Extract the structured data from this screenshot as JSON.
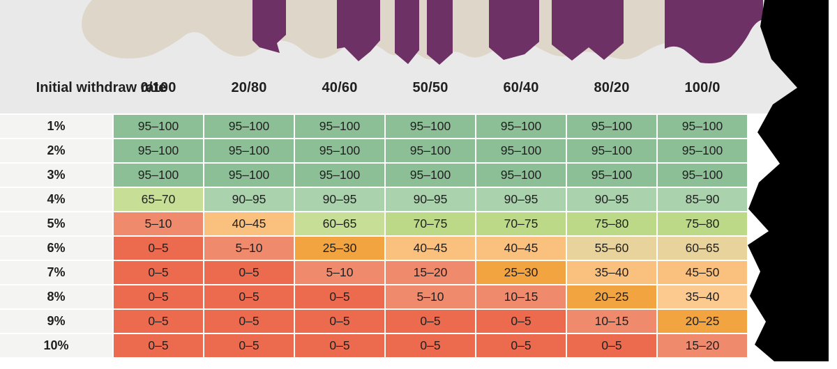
{
  "page": {
    "background": "#ffffff"
  },
  "decoration": {
    "band_color": "#e9e9ea",
    "beige": "#ddd6c9",
    "purple": "#6e3166",
    "torn_color": "#000000"
  },
  "palette": {
    "green": "#8dbf97",
    "lightgreen": "#a9d2ad",
    "lime": "#bcd987",
    "yellowgreen": "#c6de96",
    "tan": "#e9d39c",
    "peach": "#fac07e",
    "lightpeach": "#fcca8e",
    "orange": "#f2a440",
    "salmon": "#f08a6c",
    "red": "#ec6a4d",
    "label_bg": "#f4f4f3",
    "text": "#1f1f1f"
  },
  "table": {
    "corner_header": "Initial withdraw rate",
    "columns": [
      "0/100",
      "20/80",
      "40/60",
      "50/50",
      "60/40",
      "80/20",
      "100/0"
    ],
    "rows": [
      {
        "label": "1%",
        "cells": [
          {
            "v": "95–100",
            "c": "green"
          },
          {
            "v": "95–100",
            "c": "green"
          },
          {
            "v": "95–100",
            "c": "green"
          },
          {
            "v": "95–100",
            "c": "green"
          },
          {
            "v": "95–100",
            "c": "green"
          },
          {
            "v": "95–100",
            "c": "green"
          },
          {
            "v": "95–100",
            "c": "green"
          }
        ]
      },
      {
        "label": "2%",
        "cells": [
          {
            "v": "95–100",
            "c": "green"
          },
          {
            "v": "95–100",
            "c": "green"
          },
          {
            "v": "95–100",
            "c": "green"
          },
          {
            "v": "95–100",
            "c": "green"
          },
          {
            "v": "95–100",
            "c": "green"
          },
          {
            "v": "95–100",
            "c": "green"
          },
          {
            "v": "95–100",
            "c": "green"
          }
        ]
      },
      {
        "label": "3%",
        "cells": [
          {
            "v": "95–100",
            "c": "green"
          },
          {
            "v": "95–100",
            "c": "green"
          },
          {
            "v": "95–100",
            "c": "green"
          },
          {
            "v": "95–100",
            "c": "green"
          },
          {
            "v": "95–100",
            "c": "green"
          },
          {
            "v": "95–100",
            "c": "green"
          },
          {
            "v": "95–100",
            "c": "green"
          }
        ]
      },
      {
        "label": "4%",
        "cells": [
          {
            "v": "65–70",
            "c": "yellowgreen"
          },
          {
            "v": "90–95",
            "c": "lightgreen"
          },
          {
            "v": "90–95",
            "c": "lightgreen"
          },
          {
            "v": "90–95",
            "c": "lightgreen"
          },
          {
            "v": "90–95",
            "c": "lightgreen"
          },
          {
            "v": "90–95",
            "c": "lightgreen"
          },
          {
            "v": "85–90",
            "c": "lightgreen"
          }
        ]
      },
      {
        "label": "5%",
        "cells": [
          {
            "v": "5–10",
            "c": "salmon"
          },
          {
            "v": "40–45",
            "c": "peach"
          },
          {
            "v": "60–65",
            "c": "yellowgreen"
          },
          {
            "v": "70–75",
            "c": "lime"
          },
          {
            "v": "70–75",
            "c": "lime"
          },
          {
            "v": "75–80",
            "c": "lime"
          },
          {
            "v": "75–80",
            "c": "lime"
          }
        ]
      },
      {
        "label": "6%",
        "cells": [
          {
            "v": "0–5",
            "c": "red"
          },
          {
            "v": "5–10",
            "c": "salmon"
          },
          {
            "v": "25–30",
            "c": "orange"
          },
          {
            "v": "40–45",
            "c": "peach"
          },
          {
            "v": "40–45",
            "c": "peach"
          },
          {
            "v": "55–60",
            "c": "tan"
          },
          {
            "v": "60–65",
            "c": "tan"
          }
        ]
      },
      {
        "label": "7%",
        "cells": [
          {
            "v": "0–5",
            "c": "red"
          },
          {
            "v": "0–5",
            "c": "red"
          },
          {
            "v": "5–10",
            "c": "salmon"
          },
          {
            "v": "15–20",
            "c": "salmon"
          },
          {
            "v": "25–30",
            "c": "orange"
          },
          {
            "v": "35–40",
            "c": "peach"
          },
          {
            "v": "45–50",
            "c": "peach"
          }
        ]
      },
      {
        "label": "8%",
        "cells": [
          {
            "v": "0–5",
            "c": "red"
          },
          {
            "v": "0–5",
            "c": "red"
          },
          {
            "v": "0–5",
            "c": "red"
          },
          {
            "v": "5–10",
            "c": "salmon"
          },
          {
            "v": "10–15",
            "c": "salmon"
          },
          {
            "v": "20–25",
            "c": "orange"
          },
          {
            "v": "35–40",
            "c": "lightpeach"
          }
        ]
      },
      {
        "label": "9%",
        "cells": [
          {
            "v": "0–5",
            "c": "red"
          },
          {
            "v": "0–5",
            "c": "red"
          },
          {
            "v": "0–5",
            "c": "red"
          },
          {
            "v": "0–5",
            "c": "red"
          },
          {
            "v": "0–5",
            "c": "red"
          },
          {
            "v": "10–15",
            "c": "salmon"
          },
          {
            "v": "20–25",
            "c": "orange"
          }
        ]
      },
      {
        "label": "10%",
        "cells": [
          {
            "v": "0–5",
            "c": "red"
          },
          {
            "v": "0–5",
            "c": "red"
          },
          {
            "v": "0–5",
            "c": "red"
          },
          {
            "v": "0–5",
            "c": "red"
          },
          {
            "v": "0–5",
            "c": "red"
          },
          {
            "v": "0–5",
            "c": "red"
          },
          {
            "v": "15–20",
            "c": "salmon"
          }
        ]
      }
    ]
  },
  "chart_data": {
    "type": "heatmap",
    "title": "",
    "row_header": "Initial withdraw rate",
    "rows": [
      "1%",
      "2%",
      "3%",
      "4%",
      "5%",
      "6%",
      "7%",
      "8%",
      "9%",
      "10%"
    ],
    "columns": [
      "0/100",
      "20/80",
      "40/60",
      "50/50",
      "60/40",
      "80/20",
      "100/0"
    ],
    "values": [
      [
        "95–100",
        "95–100",
        "95–100",
        "95–100",
        "95–100",
        "95–100",
        "95–100"
      ],
      [
        "95–100",
        "95–100",
        "95–100",
        "95–100",
        "95–100",
        "95–100",
        "95–100"
      ],
      [
        "95–100",
        "95–100",
        "95–100",
        "95–100",
        "95–100",
        "95–100",
        "95–100"
      ],
      [
        "65–70",
        "90–95",
        "90–95",
        "90–95",
        "90–95",
        "90–95",
        "85–90"
      ],
      [
        "5–10",
        "40–45",
        "60–65",
        "70–75",
        "70–75",
        "75–80",
        "75–80"
      ],
      [
        "0–5",
        "5–10",
        "25–30",
        "40–45",
        "40–45",
        "55–60",
        "60–65"
      ],
      [
        "0–5",
        "0–5",
        "5–10",
        "15–20",
        "25–30",
        "35–40",
        "45–50"
      ],
      [
        "0–5",
        "0–5",
        "0–5",
        "5–10",
        "10–15",
        "20–25",
        "35–40"
      ],
      [
        "0–5",
        "0–5",
        "0–5",
        "0–5",
        "0–5",
        "10–15",
        "20–25"
      ],
      [
        "0–5",
        "0–5",
        "0–5",
        "0–5",
        "0–5",
        "0–5",
        "15–20"
      ]
    ],
    "legend_position": "none",
    "grid": "white 2px gaps between cells",
    "color_scale": "green (high success) to red (low success)"
  }
}
